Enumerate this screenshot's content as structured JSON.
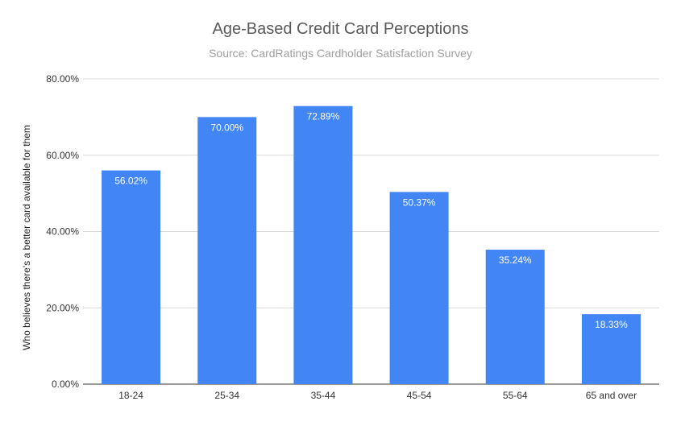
{
  "chart_data": {
    "type": "bar",
    "title": "Age-Based Credit Card Perceptions",
    "subtitle": "Source: CardRatings Cardholder Satisfaction Survey",
    "xlabel": "",
    "ylabel": "Who believes there's a better card available for them",
    "categories": [
      "18-24",
      "25-34",
      "35-44",
      "45-54",
      "55-64",
      "65 and over"
    ],
    "values": [
      56.02,
      70.0,
      72.89,
      50.37,
      35.24,
      18.33
    ],
    "value_labels": [
      "56.02%",
      "70.00%",
      "72.89%",
      "50.37%",
      "35.24%",
      "18.33%"
    ],
    "ylim": [
      0,
      80
    ],
    "yticks": [
      0,
      20,
      40,
      60,
      80
    ],
    "ytick_labels": [
      "0.00%",
      "20.00%",
      "40.00%",
      "60.00%",
      "80.00%"
    ],
    "grid": true,
    "legend": "none",
    "colors": {
      "bar": "#4285f4",
      "grid": "#d9d9d9",
      "axis": "#333333"
    }
  }
}
